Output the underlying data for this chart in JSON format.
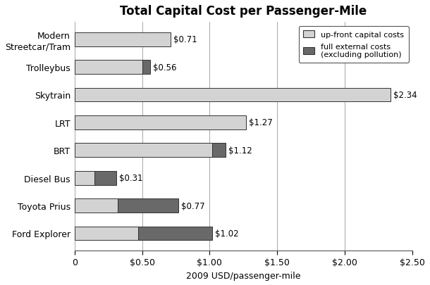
{
  "title": "Total Capital Cost per Passenger-Mile",
  "xlabel": "2009 USD/passenger-mile",
  "categories": [
    "Modern\nStreetcar/Tram",
    "Trolleybus",
    "Skytrain",
    "LRT",
    "BRT",
    "Diesel Bus",
    "Toyota Prius",
    "Ford Explorer"
  ],
  "upfront_values": [
    0.71,
    0.5,
    2.34,
    1.27,
    1.02,
    0.15,
    0.32,
    0.47
  ],
  "external_values": [
    0.0,
    0.06,
    0.0,
    0.0,
    0.1,
    0.16,
    0.45,
    0.55
  ],
  "labels": [
    "$0.71",
    "$0.56",
    "$2.34",
    "$1.27",
    "$1.12",
    "$0.31",
    "$0.77",
    "$1.02"
  ],
  "color_upfront": "#d3d3d3",
  "color_external": "#696969",
  "color_border": "#333333",
  "bg_color": "#ffffff",
  "xlim": [
    0,
    2.5
  ],
  "xticks": [
    0,
    0.5,
    1.0,
    1.5,
    2.0,
    2.5
  ],
  "xticklabels": [
    "0",
    "$0.50",
    "$1.00",
    "$1.50",
    "$2.00",
    "$2.50"
  ],
  "legend_upfront": "up-front capital costs",
  "legend_external": "full external costs\n(excluding pollution)",
  "bar_height": 0.5,
  "figsize": [
    6.1,
    4.06
  ],
  "dpi": 100
}
